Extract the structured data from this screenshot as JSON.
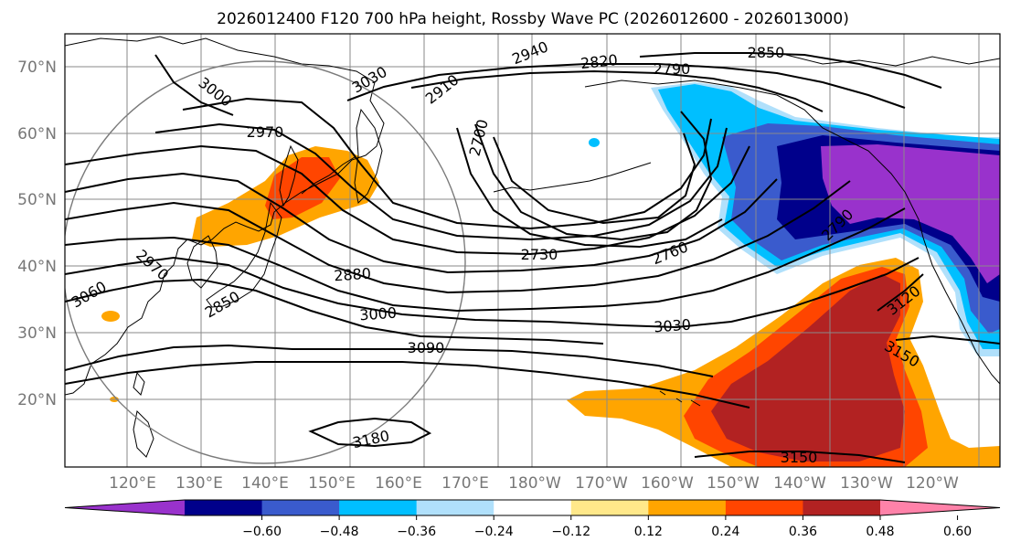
{
  "title": "2026012400 F120 700 hPa height, Rossby Wave PC (2026012600 - 2026013000)",
  "map": {
    "lat_labels": [
      "70°N",
      "60°N",
      "50°N",
      "40°N",
      "30°N",
      "20°N"
    ],
    "lon_labels": [
      "120°E",
      "130°E",
      "140°E",
      "150°E",
      "160°E",
      "170°E",
      "180°W",
      "170°W",
      "160°W",
      "150°W",
      "140°W",
      "130°W",
      "120°W"
    ],
    "contour_labels": [
      "3030",
      "3000",
      "2970",
      "2940",
      "2910",
      "2820",
      "2790",
      "2850",
      "2700",
      "2730",
      "2760",
      "2880",
      "3000",
      "3030",
      "3090",
      "3060",
      "2970",
      "2850",
      "3180",
      "3120",
      "3150",
      "3150",
      "2790"
    ]
  },
  "colorbar": {
    "ticks": [
      "−0.60",
      "−0.48",
      "−0.36",
      "−0.24",
      "−0.12",
      "0.12",
      "0.24",
      "0.36",
      "0.48",
      "0.60"
    ],
    "colors": [
      "#9932cc",
      "#00008b",
      "#3a5bcd",
      "#00bfff",
      "#b0e0fb",
      "#ffffff",
      "#ffe88a",
      "#ffa500",
      "#ff4500",
      "#b22222",
      "#ff82a9"
    ]
  }
}
